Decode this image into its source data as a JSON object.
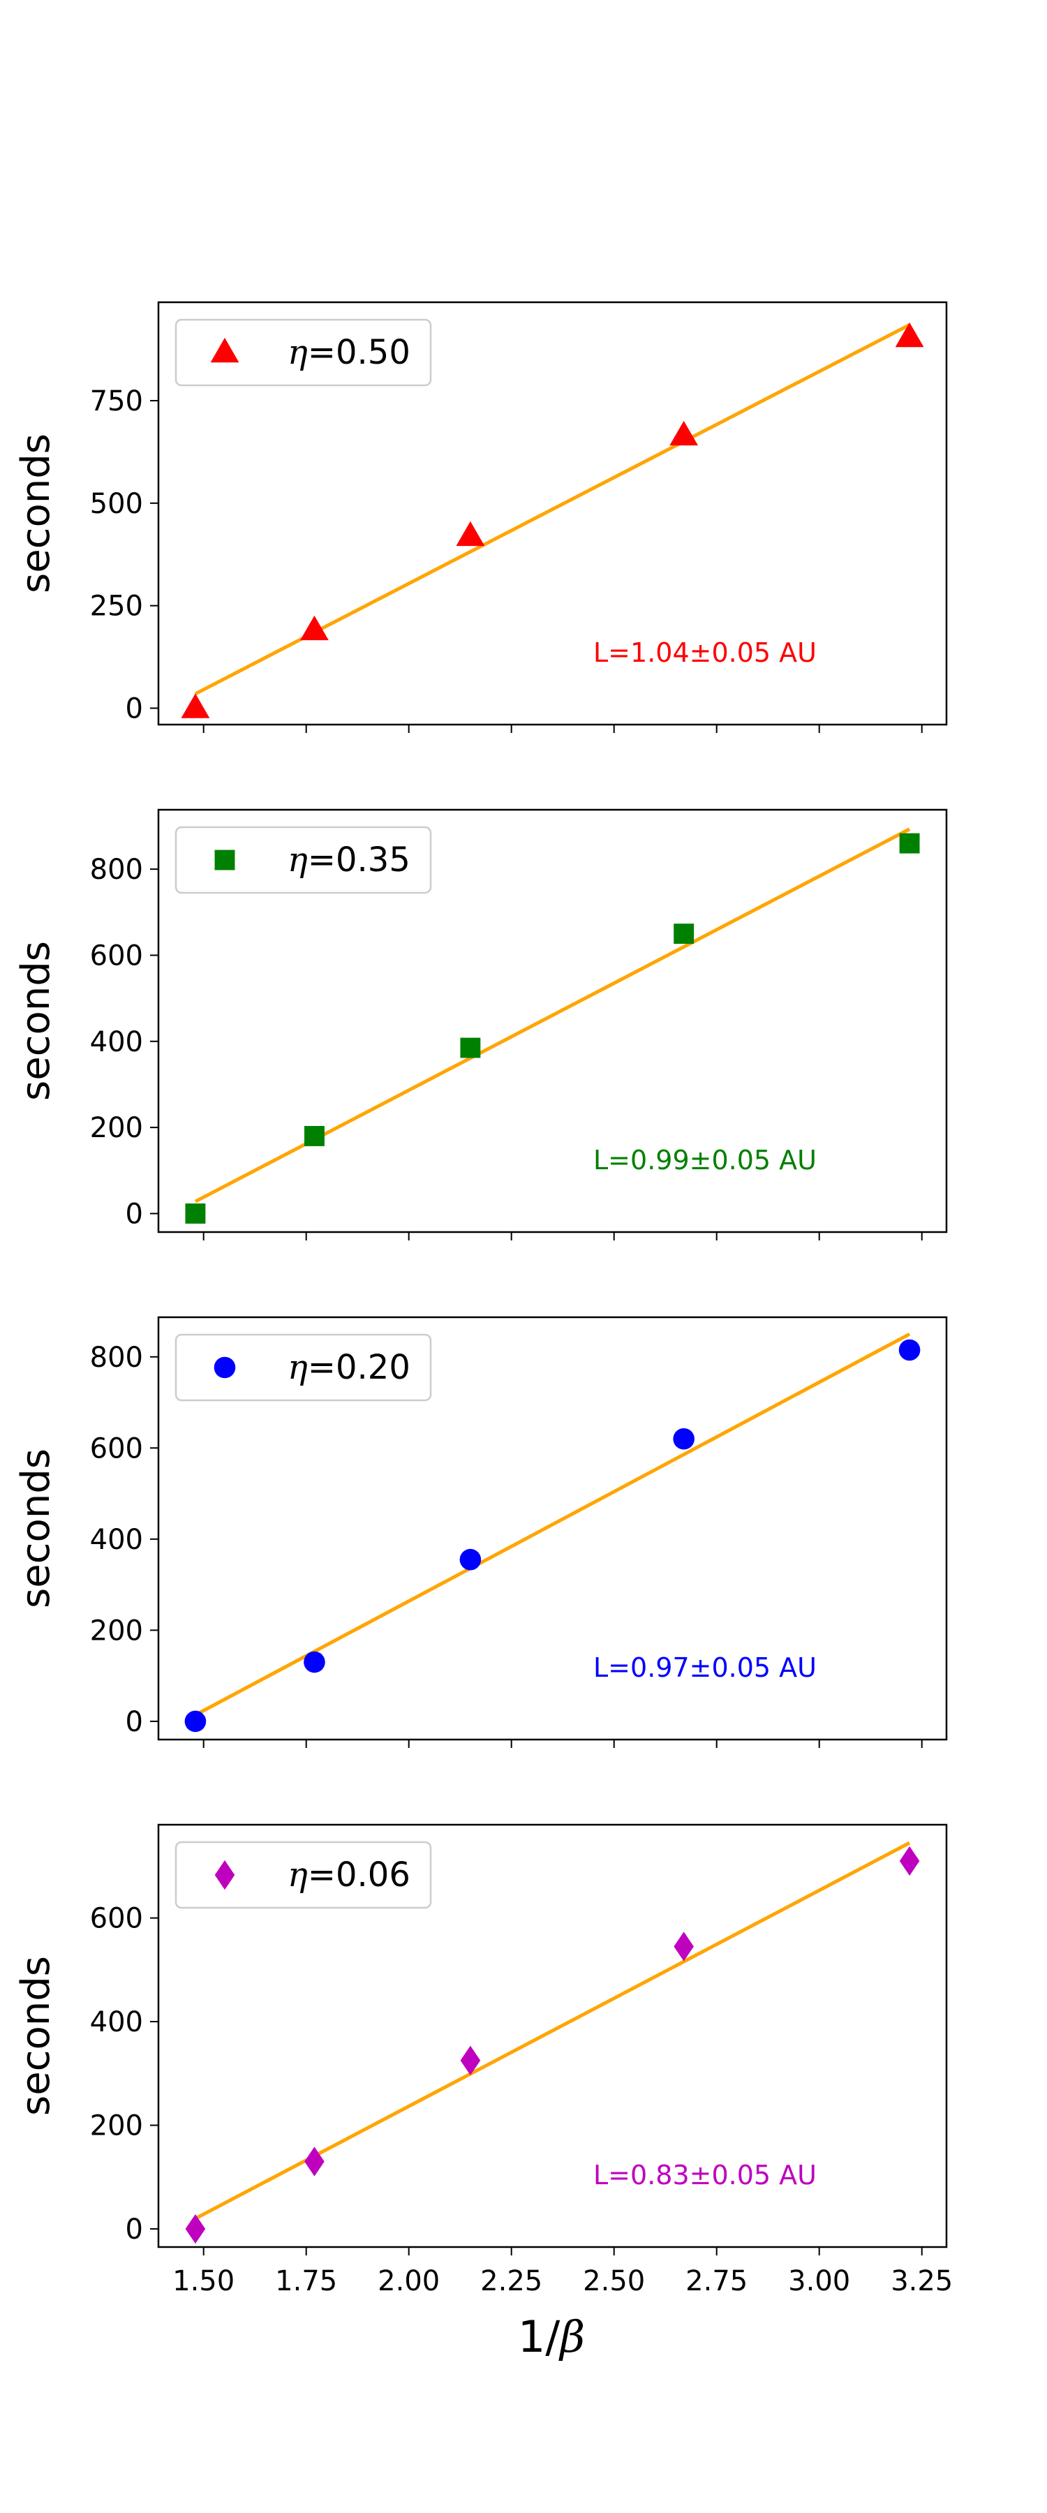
{
  "chart_data": [
    {
      "type": "scatter",
      "legend": {
        "symbol": "η",
        "value": "=0.50",
        "placement": "upper-left"
      },
      "marker": "triangle",
      "color": "#ff0000",
      "ylabel": "seconds",
      "xlabel": "",
      "ylim": [
        -40,
        990
      ],
      "yticks": [
        0,
        250,
        500,
        750
      ],
      "x": [
        1.48,
        1.77,
        2.15,
        2.67,
        3.22
      ],
      "y": [
        0,
        190,
        420,
        665,
        905
      ],
      "fit_line": {
        "x": [
          1.48,
          3.22
        ],
        "y": [
          35,
          935
        ],
        "color": "#ffa500"
      },
      "annotation": "L=1.04±0.05 AU"
    },
    {
      "type": "scatter",
      "legend": {
        "symbol": "η",
        "value": "=0.35",
        "placement": "upper-left"
      },
      "marker": "square",
      "color": "#008000",
      "ylabel": "seconds",
      "xlabel": "",
      "ylim": [
        -43,
        938
      ],
      "yticks": [
        0,
        200,
        400,
        600,
        800
      ],
      "x": [
        1.48,
        1.77,
        2.15,
        2.67,
        3.22
      ],
      "y": [
        0,
        180,
        385,
        650,
        860
      ],
      "fit_line": {
        "x": [
          1.48,
          3.22
        ],
        "y": [
          28,
          893
        ],
        "color": "#ffa500"
      },
      "annotation": "L=0.99±0.05 AU"
    },
    {
      "type": "scatter",
      "legend": {
        "symbol": "η",
        "value": "=0.20",
        "placement": "upper-left"
      },
      "marker": "circle",
      "color": "#0000ff",
      "ylabel": "seconds",
      "xlabel": "",
      "ylim": [
        -40,
        887
      ],
      "yticks": [
        0,
        200,
        400,
        600,
        800
      ],
      "x": [
        1.48,
        1.77,
        2.15,
        2.67,
        3.22
      ],
      "y": [
        0,
        130,
        355,
        620,
        815
      ],
      "fit_line": {
        "x": [
          1.48,
          3.22
        ],
        "y": [
          14,
          850
        ],
        "color": "#ffa500"
      },
      "annotation": "L=0.97±0.05 AU"
    },
    {
      "type": "scatter",
      "legend": {
        "symbol": "η",
        "value": "=0.06",
        "placement": "upper-left"
      },
      "marker": "diamond",
      "color": "#bf00bf",
      "ylabel": "seconds",
      "xlabel": "1/β",
      "ylim": [
        -35,
        780
      ],
      "yticks": [
        0,
        200,
        400,
        600
      ],
      "x": [
        1.48,
        1.77,
        2.15,
        2.67,
        3.22
      ],
      "y": [
        0,
        130,
        325,
        545,
        710
      ],
      "fit_line": {
        "x": [
          1.48,
          3.22
        ],
        "y": [
          20,
          745
        ],
        "color": "#ffa500"
      },
      "annotation": "L=0.83±0.05 AU"
    }
  ],
  "shared_x": {
    "xlim": [
      1.39,
      3.31
    ],
    "xticks": [
      1.5,
      1.75,
      2.0,
      2.25,
      2.5,
      2.75,
      3.0,
      3.25
    ],
    "xtick_labels": [
      "1.50",
      "1.75",
      "2.00",
      "2.25",
      "2.50",
      "2.75",
      "3.00",
      "3.25"
    ],
    "xlabel_main": "1/",
    "xlabel_symbol": "β"
  }
}
